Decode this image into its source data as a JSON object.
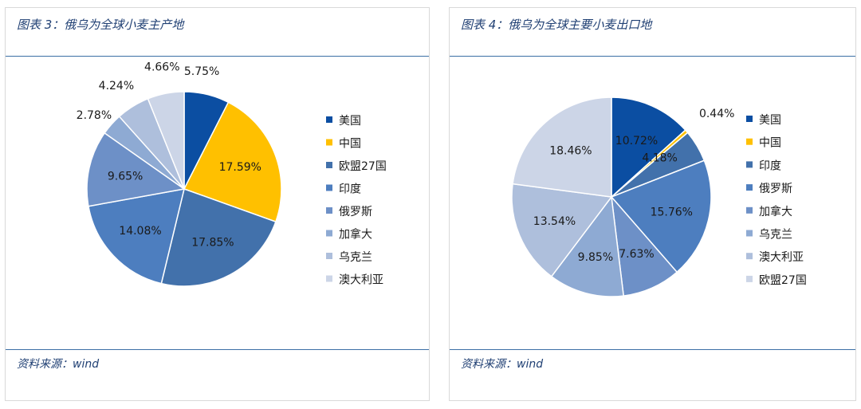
{
  "left": {
    "title": "图表 3：俄乌为全球小麦主产地",
    "source": "资料来源：wind"
  },
  "right": {
    "title": "图表 4：俄乌为全球主要小麦出口地",
    "source": "资料来源：wind"
  },
  "chart_data": [
    {
      "type": "pie",
      "title": "俄乌为全球小麦主产地",
      "legend_position": "right",
      "slices": [
        {
          "name": "美国",
          "value": 5.75,
          "label": "5.75%",
          "color": "#0b4ea2"
        },
        {
          "name": "中国",
          "value": 17.59,
          "label": "17.59%",
          "color": "#ffc000"
        },
        {
          "name": "欧盟27国",
          "value": 17.85,
          "label": "17.85%",
          "color": "#4271ab"
        },
        {
          "name": "印度",
          "value": 14.08,
          "label": "14.08%",
          "color": "#4d7ebf"
        },
        {
          "name": "俄罗斯",
          "value": 9.65,
          "label": "9.65%",
          "color": "#6d90c7"
        },
        {
          "name": "加拿大",
          "value": 2.78,
          "label": "2.78%",
          "color": "#8eaad3"
        },
        {
          "name": "乌克兰",
          "value": 4.24,
          "label": "4.24%",
          "color": "#aebfdc"
        },
        {
          "name": "澳大利亚",
          "value": 4.66,
          "label": "4.66%",
          "color": "#ccd5e7"
        }
      ]
    },
    {
      "type": "pie",
      "title": "俄乌为全球主要小麦出口地",
      "legend_position": "right",
      "slices": [
        {
          "name": "美国",
          "value": 10.72,
          "label": "10.72%",
          "color": "#0b4ea2"
        },
        {
          "name": "中国",
          "value": 0.44,
          "label": "0.44%",
          "color": "#ffc000"
        },
        {
          "name": "印度",
          "value": 4.18,
          "label": "4.18%",
          "color": "#4271ab"
        },
        {
          "name": "俄罗斯",
          "value": 15.76,
          "label": "15.76%",
          "color": "#4d7ebf"
        },
        {
          "name": "加拿大",
          "value": 7.63,
          "label": "7.63%",
          "color": "#6d90c7"
        },
        {
          "name": "乌克兰",
          "value": 9.85,
          "label": "9.85%",
          "color": "#8eaad3"
        },
        {
          "name": "澳大利亚",
          "value": 13.54,
          "label": "13.54%",
          "color": "#aebfdc"
        },
        {
          "name": "欧盟27国",
          "value": 18.46,
          "label": "18.46%",
          "color": "#ccd5e7"
        }
      ]
    }
  ]
}
